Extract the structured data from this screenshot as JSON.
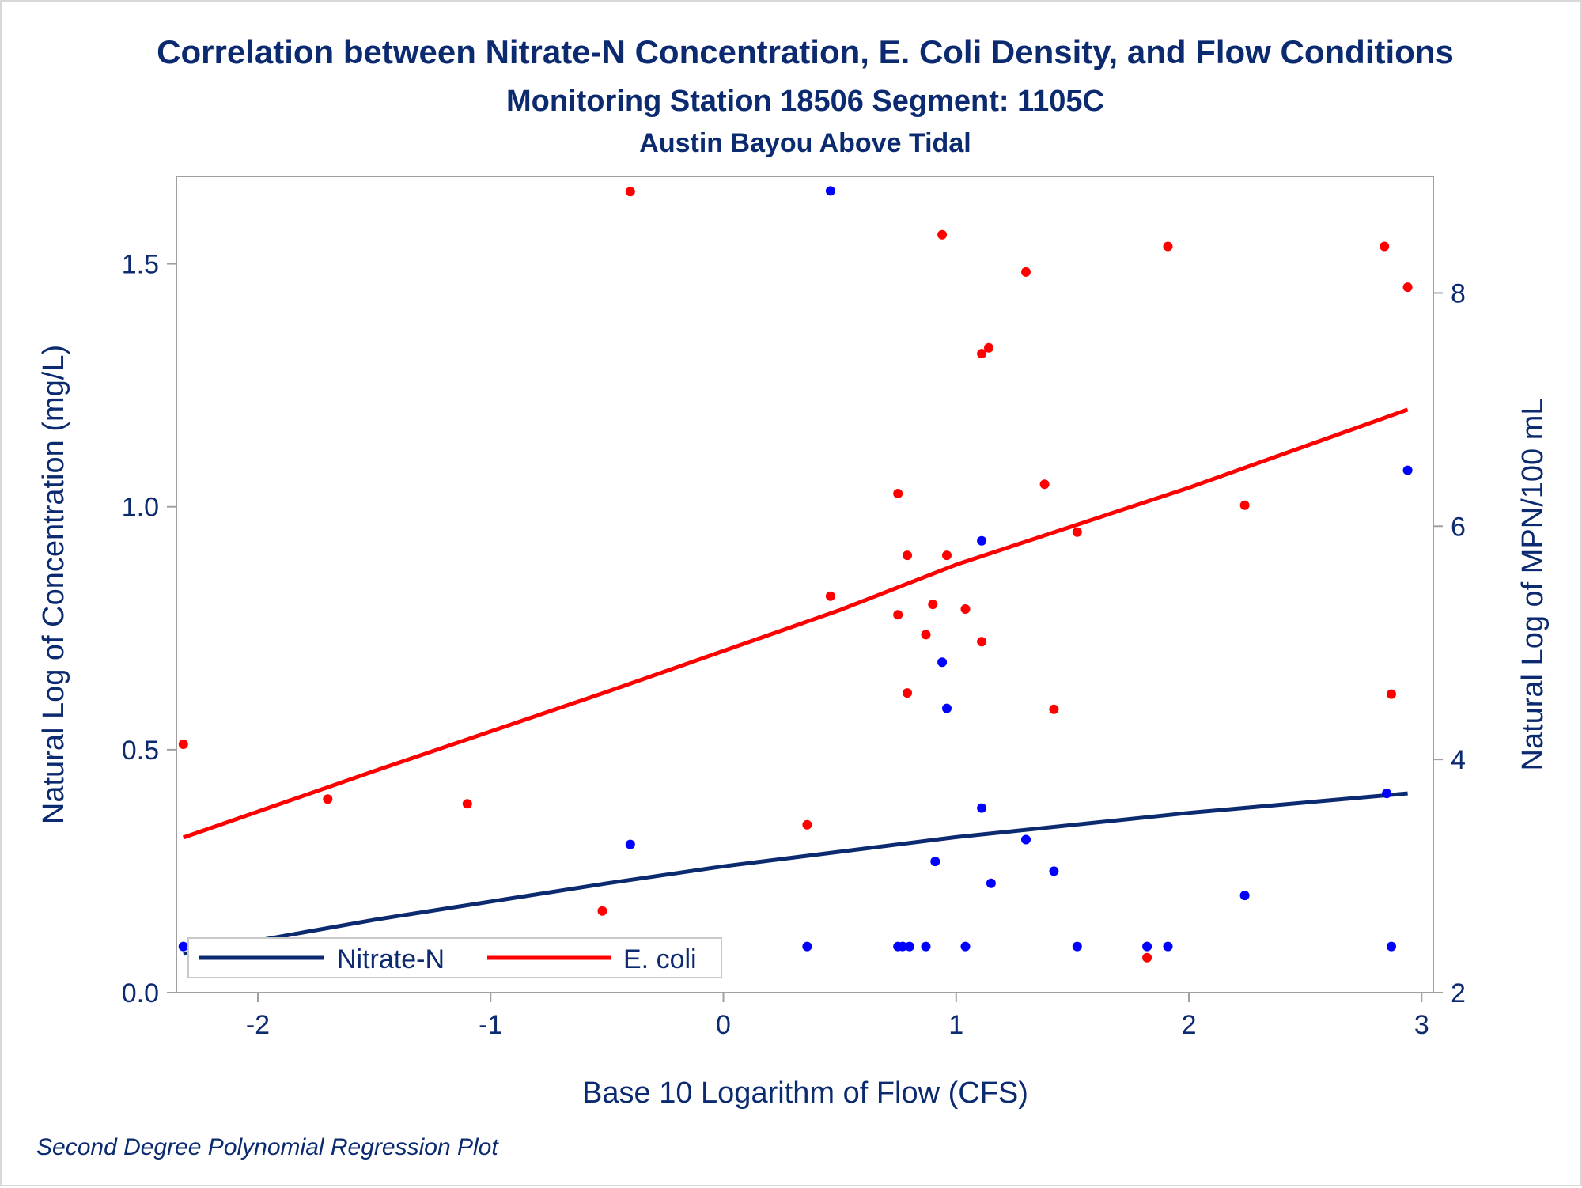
{
  "chart_data": {
    "type": "scatter",
    "title": "Correlation between Nitrate-N Concentration, E. Coli Density, and Flow Conditions",
    "subtitle": "Monitoring Station 18506 Segment: 1105C",
    "subtitle2": "Austin Bayou Above Tidal",
    "footnote": "Second Degree Polynomial Regression Plot",
    "xlabel": "Base 10 Logarithm of Flow (CFS)",
    "ylabel_left": "Natural Log of Concentration (mg/L)",
    "ylabel_right": "Natural Log of MPN/100 mL",
    "xlim": [
      -2.35,
      3.05
    ],
    "ylim_left": [
      0,
      1.68
    ],
    "ylim_right": [
      2,
      9
    ],
    "x_ticks": [
      -2,
      -1,
      0,
      1,
      2,
      3
    ],
    "x_tick_labels": [
      "-2",
      "-1",
      "0",
      "1",
      "2",
      "3"
    ],
    "y_left_ticks": [
      0,
      0.5,
      1,
      1.5
    ],
    "y_left_tick_labels": [
      "0.0",
      "0.5",
      "1.0",
      "1.5"
    ],
    "y_right_ticks": [
      2,
      4,
      6,
      8
    ],
    "y_right_tick_labels": [
      "2",
      "4",
      "6",
      "8"
    ],
    "grid": false,
    "legend_position": "bottom-left-inside",
    "legend": [
      {
        "name": "Nitrate-N",
        "color": "#0b2a6f"
      },
      {
        "name": "E. coli",
        "color": "#ff0000"
      }
    ],
    "colors": {
      "nitrate_line": "#0b2a6f",
      "nitrate_points": "#0000ff",
      "ecoli_line": "#ff0000",
      "ecoli_points": "#ff0000",
      "text": "#0b2a6f",
      "axis": "#a0a0a0"
    },
    "series": [
      {
        "name": "Nitrate-N",
        "axis": "left",
        "points": [
          [
            -2.32,
            0.095
          ],
          [
            -1.7,
            0.095
          ],
          [
            -1.1,
            0.095
          ],
          [
            -0.7,
            0.095
          ],
          [
            -0.52,
            0.095
          ],
          [
            -0.4,
            0.305
          ],
          [
            0.36,
            0.095
          ],
          [
            0.46,
            1.65
          ],
          [
            0.75,
            0.095
          ],
          [
            0.77,
            0.095
          ],
          [
            0.8,
            0.095
          ],
          [
            0.87,
            0.095
          ],
          [
            0.91,
            0.27
          ],
          [
            0.94,
            0.68
          ],
          [
            0.96,
            0.585
          ],
          [
            1.04,
            0.095
          ],
          [
            1.11,
            0.93
          ],
          [
            1.11,
            0.38
          ],
          [
            1.15,
            0.225
          ],
          [
            1.3,
            0.315
          ],
          [
            1.42,
            0.25
          ],
          [
            1.52,
            0.095
          ],
          [
            1.82,
            0.095
          ],
          [
            1.91,
            0.095
          ],
          [
            2.24,
            0.2
          ],
          [
            2.85,
            0.41
          ],
          [
            2.87,
            0.095
          ],
          [
            2.94,
            1.075
          ]
        ],
        "fit": [
          [
            -2.32,
            0.08
          ],
          [
            -1.5,
            0.15
          ],
          [
            -0.5,
            0.225
          ],
          [
            0,
            0.26
          ],
          [
            1,
            0.32
          ],
          [
            2,
            0.37
          ],
          [
            2.94,
            0.41
          ]
        ]
      },
      {
        "name": "E. coli",
        "axis": "right",
        "points": [
          [
            -2.32,
            4.13
          ],
          [
            -1.7,
            3.66
          ],
          [
            -1.1,
            3.62
          ],
          [
            -0.7,
            2.3
          ],
          [
            -0.52,
            2.7
          ],
          [
            -0.4,
            8.87
          ],
          [
            0.36,
            3.44
          ],
          [
            0.46,
            5.4
          ],
          [
            0.75,
            6.28
          ],
          [
            0.75,
            5.24
          ],
          [
            0.79,
            5.75
          ],
          [
            0.79,
            4.57
          ],
          [
            0.87,
            5.07
          ],
          [
            0.9,
            5.33
          ],
          [
            0.94,
            8.5
          ],
          [
            0.96,
            5.75
          ],
          [
            1.04,
            5.29
          ],
          [
            1.11,
            7.48
          ],
          [
            1.11,
            5.01
          ],
          [
            1.14,
            7.53
          ],
          [
            1.3,
            8.18
          ],
          [
            1.38,
            6.36
          ],
          [
            1.42,
            4.43
          ],
          [
            1.52,
            5.95
          ],
          [
            1.82,
            2.3
          ],
          [
            1.91,
            8.4
          ],
          [
            2.24,
            6.18
          ],
          [
            2.84,
            8.4
          ],
          [
            2.87,
            4.56
          ],
          [
            2.94,
            8.05
          ]
        ],
        "fit": [
          [
            -2.32,
            3.33
          ],
          [
            -1.5,
            3.9
          ],
          [
            -0.5,
            4.58
          ],
          [
            0,
            4.93
          ],
          [
            0.5,
            5.28
          ],
          [
            1,
            5.67
          ],
          [
            2,
            6.33
          ],
          [
            2.94,
            7.0
          ]
        ]
      }
    ]
  }
}
